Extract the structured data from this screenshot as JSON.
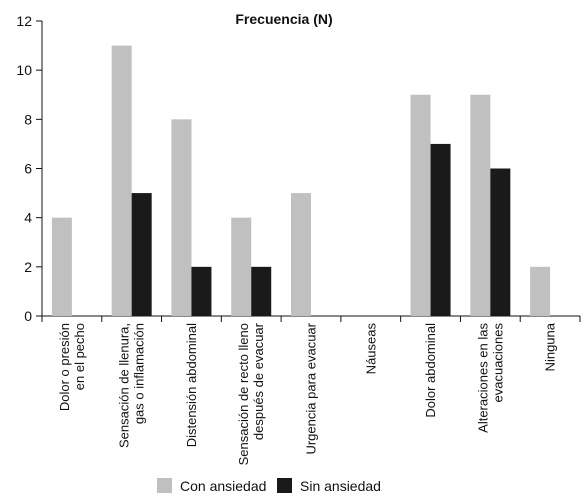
{
  "chart_data": {
    "type": "bar",
    "title": "Frecuencia (N)",
    "categories": [
      [
        "Dolor o presión",
        "en el pecho"
      ],
      [
        "Sensación de llenura,",
        "gas o inflamación"
      ],
      [
        "Distensión abdominal"
      ],
      [
        "Sensación de recto lleno",
        "después de evacuar"
      ],
      [
        "Urgencia para evacuar"
      ],
      [
        "Náuseas"
      ],
      [
        "Dolor abdominal"
      ],
      [
        "Alteraciones en las",
        "evacuaciones"
      ],
      [
        "Ninguna"
      ]
    ],
    "series": [
      {
        "name": "Con ansiedad",
        "color": "#c0c0c0",
        "values": [
          4,
          11,
          8,
          4,
          5,
          0,
          9,
          9,
          2
        ]
      },
      {
        "name": "Sin ansiedad",
        "color": "#1a1a1a",
        "values": [
          0,
          5,
          2,
          2,
          0,
          0,
          7,
          6,
          0
        ]
      }
    ],
    "ylim": [
      0,
      12
    ],
    "yticks": [
      0,
      2,
      4,
      6,
      8,
      10,
      12
    ],
    "grid": false,
    "legend_position": "bottom"
  }
}
